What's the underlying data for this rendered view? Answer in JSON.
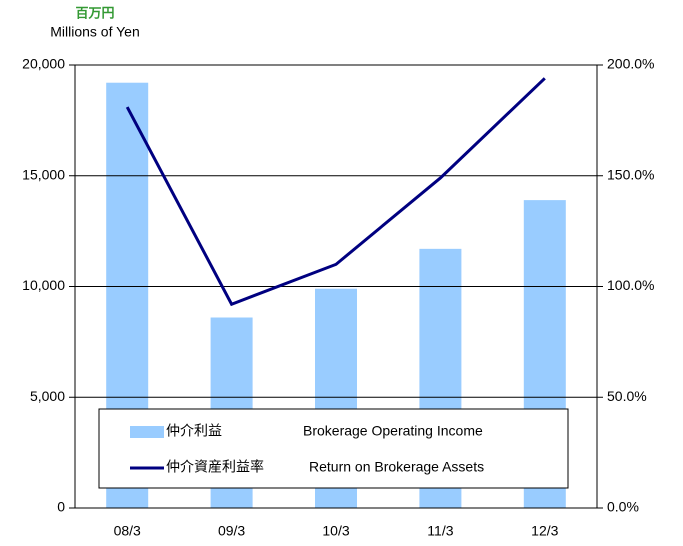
{
  "chart_data": {
    "type": "bar_line",
    "unit_ja": "百万円",
    "unit_en": "Millions of Yen",
    "categories": [
      "08/3",
      "09/3",
      "10/3",
      "11/3",
      "12/3"
    ],
    "series": [
      {
        "name": "仲介利益",
        "name_en": "Brokerage Operating Income",
        "type": "bar",
        "color": "#99ccff",
        "values": [
          19200,
          8600,
          9900,
          11700,
          13900
        ]
      },
      {
        "name": "仲介資産利益率",
        "name_en": "Return on Brokerage Assets",
        "type": "line",
        "axis": "y2",
        "color": "#000080",
        "values": [
          181,
          92,
          110,
          149,
          194
        ]
      }
    ],
    "ylim": [
      0,
      20000
    ],
    "yticks": [
      0,
      {
        "value": 5000,
        "label": "5,000"
      },
      {
        "value": 10000,
        "label": "10,000"
      },
      {
        "value": 15000,
        "label": "15,000"
      },
      {
        "value": 20000,
        "label": "20,000"
      }
    ],
    "y2lim": [
      0,
      200
    ],
    "y2ticks": [
      {
        "value": 0,
        "label": "0.0%"
      },
      {
        "value": 50,
        "label": "50.0%"
      },
      {
        "value": 100,
        "label": "100.0%"
      },
      {
        "value": 150,
        "label": "150.0%"
      },
      {
        "value": 200,
        "label": "200.0%"
      }
    ],
    "grid": true
  }
}
